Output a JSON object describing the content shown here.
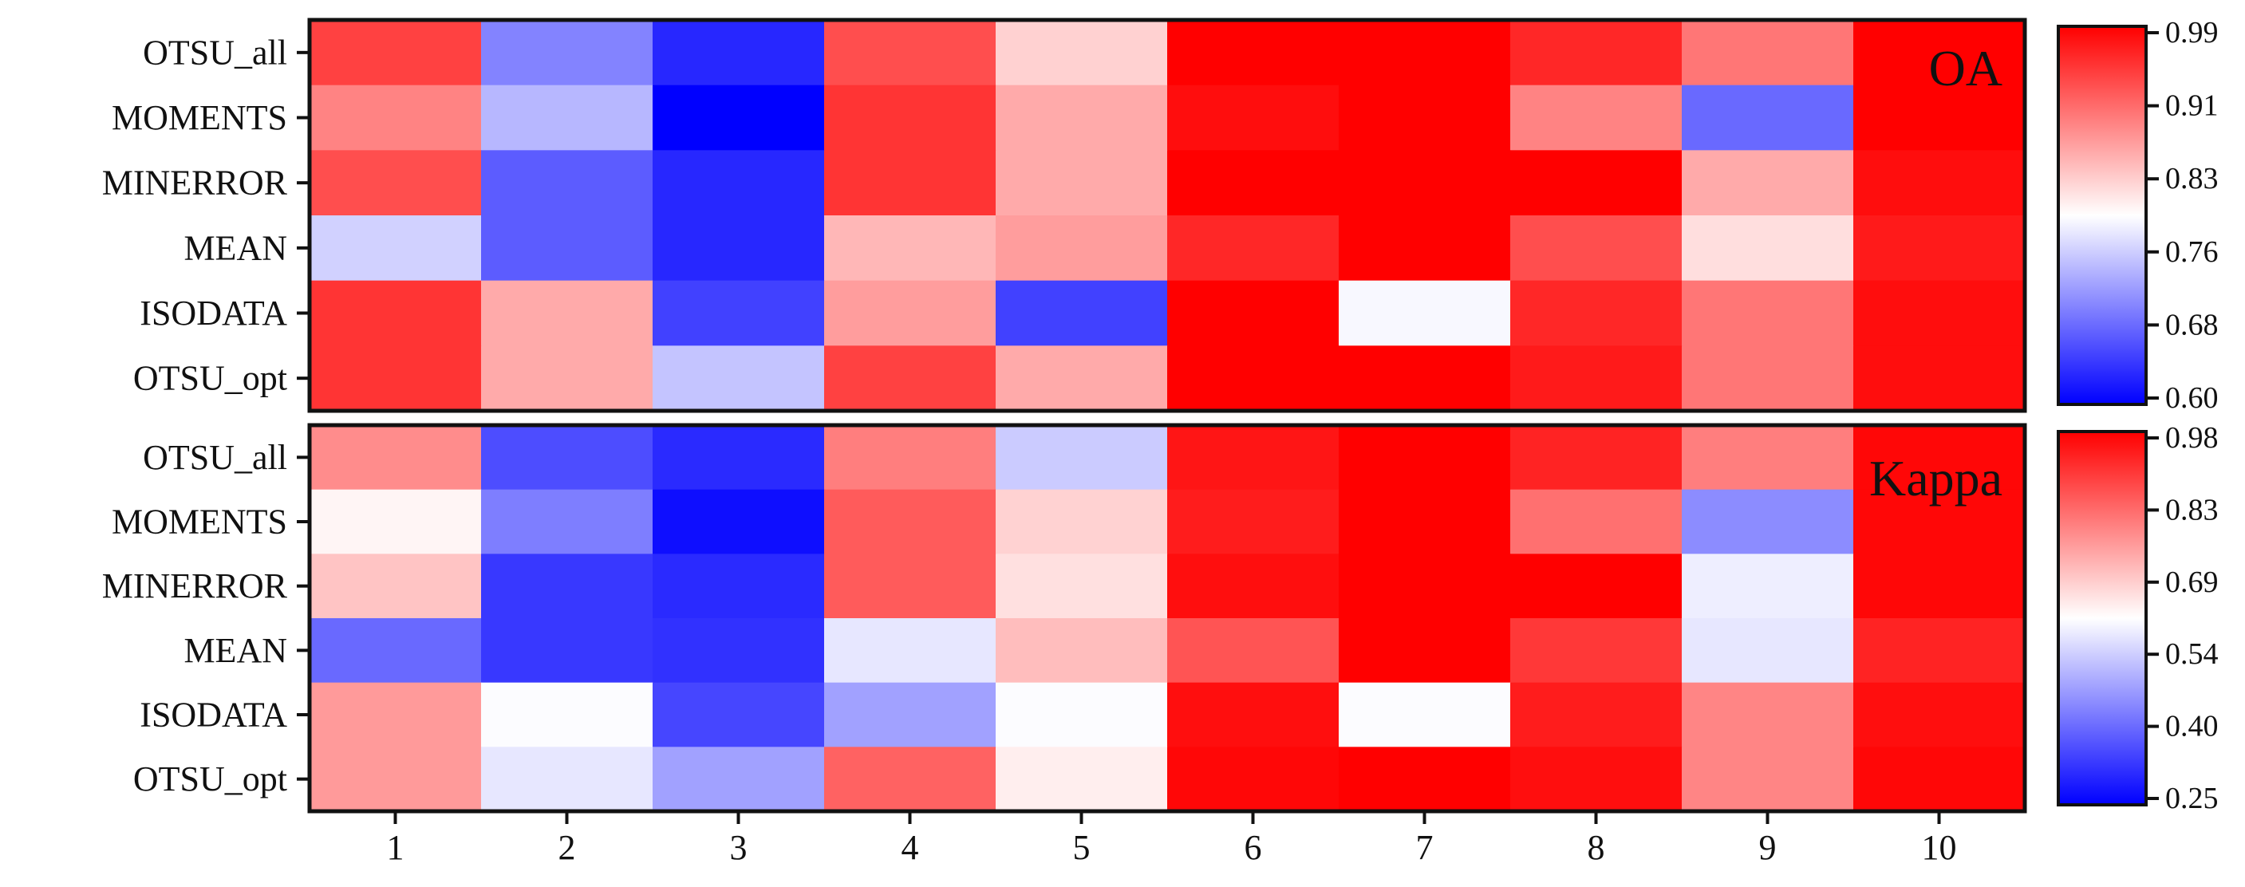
{
  "chart_data": [
    {
      "type": "heatmap",
      "annotation": "OA",
      "rows": [
        "OTSU_all",
        "MOMENTS",
        "MINERROR",
        "MEAN",
        "ISODATA",
        "OTSU_opt"
      ],
      "columns": [
        "1",
        "2",
        "3",
        "4",
        "5",
        "6",
        "7",
        "8",
        "9",
        "10"
      ],
      "values": [
        [
          0.94,
          0.7,
          0.63,
          0.93,
          0.83,
          0.99,
          0.99,
          0.96,
          0.9,
          0.99
        ],
        [
          0.89,
          0.74,
          0.6,
          0.95,
          0.86,
          0.98,
          0.99,
          0.89,
          0.68,
          0.99
        ],
        [
          0.93,
          0.67,
          0.63,
          0.95,
          0.86,
          0.99,
          0.99,
          0.99,
          0.86,
          0.98
        ],
        [
          0.76,
          0.67,
          0.63,
          0.85,
          0.87,
          0.96,
          0.99,
          0.93,
          0.82,
          0.97
        ],
        [
          0.95,
          0.86,
          0.65,
          0.87,
          0.65,
          0.99,
          0.79,
          0.96,
          0.9,
          0.98
        ],
        [
          0.95,
          0.86,
          0.75,
          0.94,
          0.86,
          0.99,
          0.99,
          0.97,
          0.9,
          0.98
        ]
      ],
      "colorbar": {
        "min": 0.6,
        "max": 0.99,
        "ticks": [
          "0.99",
          "0.91",
          "0.83",
          "0.76",
          "0.68",
          "0.60"
        ]
      },
      "colormap": [
        "#0000ff",
        "#ffffff",
        "#ff0000"
      ]
    },
    {
      "type": "heatmap",
      "annotation": "Kappa",
      "rows": [
        "OTSU_all",
        "MOMENTS",
        "MINERROR",
        "MEAN",
        "ISODATA",
        "OTSU_opt"
      ],
      "columns": [
        "1",
        "2",
        "3",
        "4",
        "5",
        "6",
        "7",
        "8",
        "9",
        "10"
      ],
      "values": [
        [
          0.78,
          0.36,
          0.31,
          0.8,
          0.54,
          0.95,
          0.98,
          0.93,
          0.8,
          0.97
        ],
        [
          0.63,
          0.43,
          0.27,
          0.85,
          0.68,
          0.94,
          0.98,
          0.82,
          0.45,
          0.97
        ],
        [
          0.7,
          0.33,
          0.31,
          0.85,
          0.66,
          0.96,
          0.98,
          0.98,
          0.59,
          0.97
        ],
        [
          0.4,
          0.33,
          0.32,
          0.58,
          0.71,
          0.86,
          0.98,
          0.9,
          0.58,
          0.93
        ],
        [
          0.76,
          0.61,
          0.35,
          0.48,
          0.61,
          0.96,
          0.61,
          0.94,
          0.79,
          0.96
        ],
        [
          0.76,
          0.58,
          0.48,
          0.84,
          0.64,
          0.97,
          0.98,
          0.96,
          0.79,
          0.97
        ]
      ],
      "colorbar": {
        "min": 0.25,
        "max": 0.98,
        "ticks": [
          "0.98",
          "0.83",
          "0.69",
          "0.54",
          "0.40",
          "0.25"
        ]
      },
      "colormap": [
        "#0000ff",
        "#ffffff",
        "#ff0000"
      ]
    }
  ]
}
